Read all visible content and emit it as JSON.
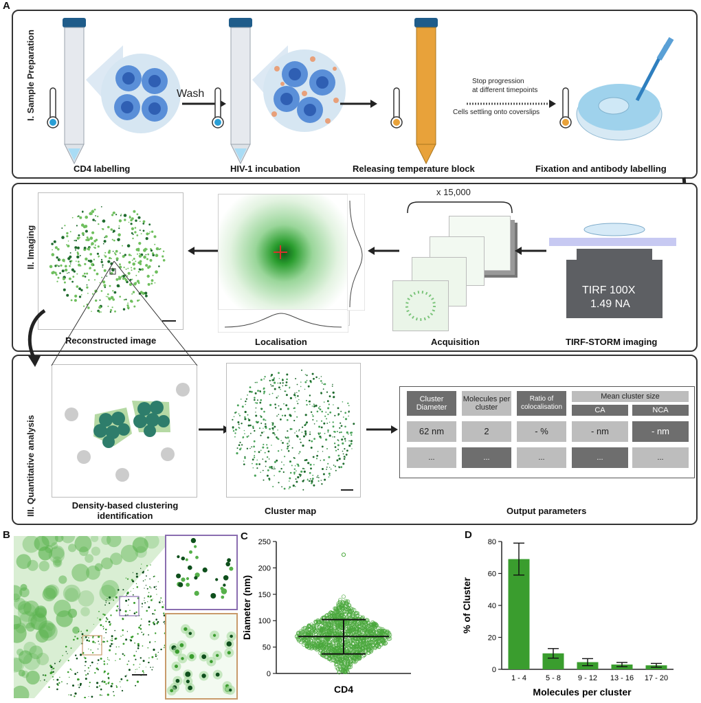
{
  "panels": {
    "a": "A",
    "b": "B",
    "c": "C",
    "d": "D"
  },
  "section1": {
    "label": "I. Sample Preparation",
    "wash": "Wash",
    "stop_text_1": "Stop progression",
    "stop_text_2": "at different timepoints",
    "settling_text": "Cells settling onto coverslips",
    "captions": [
      "CD4 labelling",
      "HIV-1 incubation",
      "Releasing temperature block",
      "Fixation and antibody labelling"
    ]
  },
  "section2": {
    "label": "II. Imaging",
    "frames_count": "x 15,000",
    "objective_line1": "TIRF 100X",
    "objective_line2": "1.49 NA",
    "captions": [
      "Reconstructed image",
      "Localisation",
      "Acquisition",
      "TIRF-STORM imaging"
    ]
  },
  "section3": {
    "label": "III. Quantitative analysis",
    "captions": [
      "Density-based clustering identification",
      "Cluster map",
      "Output parameters"
    ],
    "table": {
      "headers": [
        "Cluster Diameter",
        "Molecules per cluster",
        "Ratio of colocalisation",
        "Mean cluster size"
      ],
      "subheaders": [
        "CA",
        "NCA"
      ],
      "row1": [
        "62 nm",
        "2",
        "- %",
        "- nm",
        "- nm"
      ],
      "row2": [
        "...",
        "...",
        "...",
        "...",
        "..."
      ]
    }
  },
  "colors": {
    "green": "#3a9d2e",
    "dark_green": "#1f6b2e",
    "teal": "#2e7d6b",
    "cell_blue": "#5a8fd8",
    "tube_orange": "#e8a23a"
  },
  "chart_data": [
    {
      "type": "scatter",
      "title": "",
      "xlabel": "CD4",
      "ylabel": "Diameter (nm)",
      "ylim": [
        0,
        250
      ],
      "yticks": [
        "0",
        "50",
        "100",
        "150",
        "200",
        "250"
      ],
      "categories": [
        "CD4"
      ],
      "median": 70,
      "lower": 37,
      "upper": 102,
      "max": 225
    },
    {
      "type": "bar",
      "title": "",
      "xlabel": "Molecules per cluster",
      "ylabel": "% of Cluster",
      "ylim": [
        0,
        80
      ],
      "yticks": [
        "0",
        "20",
        "40",
        "60",
        "80"
      ],
      "categories": [
        "1 - 4",
        "5 - 8",
        "9 - 12",
        "13 - 16",
        "17 - 20"
      ],
      "values": [
        69,
        10,
        4.5,
        3,
        2.5
      ],
      "errors": [
        10,
        3,
        2.2,
        1.3,
        1.2
      ]
    }
  ]
}
